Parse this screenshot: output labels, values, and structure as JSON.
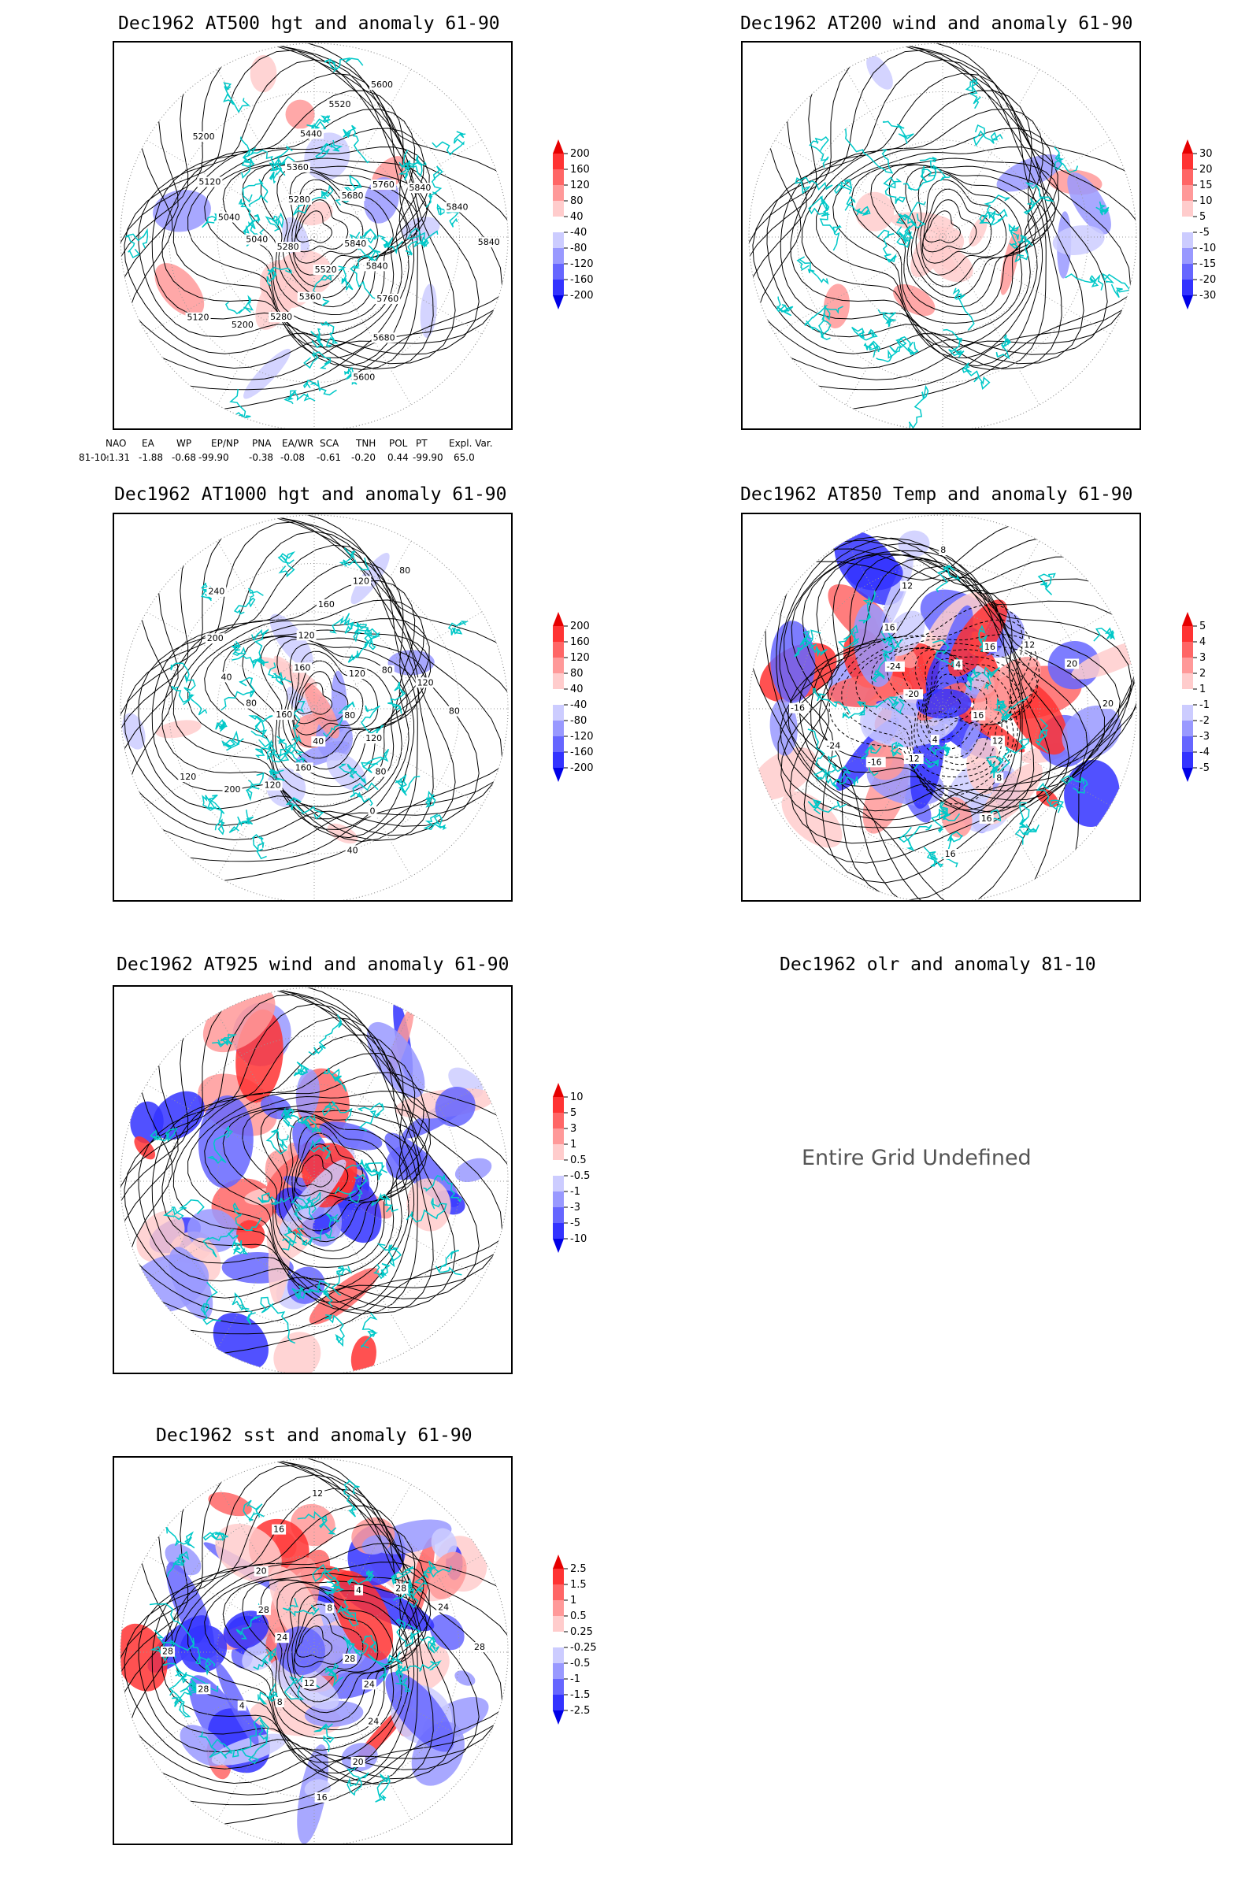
{
  "panels": [
    {
      "id": "p500",
      "title": "Dec1962 AT500 hgt and anomaly 61-90",
      "type": "height",
      "colorbar": [
        "200",
        "160",
        "120",
        "80",
        "40",
        "-40",
        "-80",
        "-120",
        "-160",
        "-200"
      ],
      "contour_labels": [
        "5840",
        "5840",
        "5760",
        "5680",
        "5600",
        "5520",
        "5360",
        "5280",
        "5200",
        "5120",
        "5280",
        "5040",
        "5040",
        "5120",
        "5200",
        "5280",
        "5360",
        "5440",
        "5520",
        "5600",
        "5680",
        "5760",
        "5840",
        "5840",
        "5840"
      ]
    },
    {
      "id": "p200",
      "title": "Dec1962 AT200 wind and anomaly 61-90",
      "type": "wind",
      "colorbar": [
        "30",
        "20",
        "15",
        "10",
        "5",
        "-5",
        "-10",
        "-15",
        "-20",
        "-30"
      ]
    },
    {
      "id": "p1000",
      "title": "Dec1962 AT1000 hgt and anomaly 61-90",
      "type": "height",
      "colorbar": [
        "200",
        "160",
        "120",
        "80",
        "40",
        "-40",
        "-80",
        "-120",
        "-160",
        "-200"
      ],
      "contour_labels": [
        "80",
        "120",
        "80",
        "0",
        "40",
        "40",
        "160",
        "120",
        "200",
        "120",
        "160",
        "80",
        "40",
        "200",
        "240",
        "160",
        "120",
        "160",
        "120",
        "80",
        "120",
        "80",
        "120",
        "80"
      ]
    },
    {
      "id": "p850",
      "title": "Dec1962 AT850 Temp and anomaly 61-90",
      "type": "temp",
      "colorbar": [
        "5",
        "4",
        "3",
        "2",
        "1",
        "-1",
        "-2",
        "-3",
        "-4",
        "-5"
      ],
      "contour_labels": [
        "16",
        "12",
        "8",
        "16",
        "16",
        "4",
        "-12",
        "-16",
        "-24",
        "-16",
        "-20",
        "-24",
        "16",
        "12",
        "8",
        "4",
        "16",
        "12",
        "20",
        "20"
      ]
    },
    {
      "id": "p925",
      "title": "Dec1962 AT925 wind and anomaly 61-90",
      "type": "wind925",
      "colorbar": [
        "10",
        "5",
        "3",
        "1",
        "0.5",
        "-0.5",
        "-1",
        "-3",
        "-5",
        "-10"
      ]
    },
    {
      "id": "polr",
      "title": "Dec1962 olr and anomaly 81-10",
      "type": "undefined",
      "message": "Entire Grid Undefined"
    },
    {
      "id": "psst",
      "title": "Dec1962 sst and anomaly 61-90",
      "type": "sst",
      "colorbar": [
        "2.5",
        "1.5",
        "1",
        "0.5",
        "0.25",
        "-0.25",
        "-0.5",
        "-1",
        "-1.5",
        "-2.5"
      ],
      "contour_labels": [
        "28",
        "24",
        "24",
        "20",
        "16",
        "12",
        "8",
        "4",
        "28",
        "28",
        "24",
        "28",
        "20",
        "16",
        "12",
        "8",
        "4",
        "28",
        "24",
        "28"
      ]
    }
  ],
  "index_table": {
    "headers": [
      "NAO",
      "EA",
      "WP",
      "EP/NP",
      "PNA",
      "EA/WR",
      "SCA",
      "TNH",
      "POL",
      "PT",
      "Expl. Var."
    ],
    "row_label": "81-10:",
    "values": [
      "-1.31",
      "-1.88",
      "-0.68",
      "-99.90",
      "-0.38",
      "-0.08",
      "-0.61",
      "-0.20",
      "0.44",
      "-99.90",
      "65.0"
    ]
  },
  "colors": {
    "coastline": "#00c8c8",
    "pos_anom": [
      "#ffcccc",
      "#ff9999",
      "#ff6666",
      "#ff3333",
      "#e60000"
    ],
    "neg_anom": [
      "#ccccff",
      "#9999ff",
      "#6666ff",
      "#3333ff",
      "#0000e6"
    ]
  }
}
